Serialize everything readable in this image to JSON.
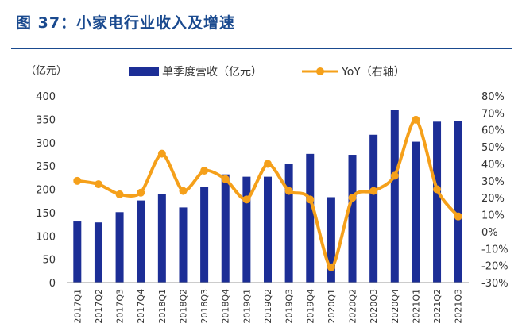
{
  "figure": {
    "title": "图 37：小家电行业收入及增速"
  },
  "chart_data": {
    "type": "bar+line",
    "y_left_unit": "（亿元）",
    "y_left_ticks": [
      "400",
      "350",
      "300",
      "250",
      "200",
      "150",
      "100",
      "50",
      "0"
    ],
    "y_right_ticks": [
      "80%",
      "70%",
      "60%",
      "50%",
      "40%",
      "30%",
      "20%",
      "10%",
      "0%",
      "-10%",
      "-20%",
      "-30%"
    ],
    "ylim_left": [
      0,
      400
    ],
    "ylim_right": [
      -30,
      80
    ],
    "legend": [
      "单季度营收（亿元）",
      "YoY（右轴）"
    ],
    "legend_position": "top",
    "colors": {
      "bar": "#1c2e96",
      "line": "#f5a01a"
    },
    "categories": [
      "2017Q1",
      "2017Q2",
      "2017Q3",
      "2017Q4",
      "2018Q1",
      "2018Q2",
      "2018Q3",
      "2018Q4",
      "2019Q1",
      "2019Q2",
      "2019Q3",
      "2019Q4",
      "2020Q1",
      "2020Q2",
      "2020Q3",
      "2020Q4",
      "2021Q1",
      "2021Q2",
      "2021Q3"
    ],
    "series": [
      {
        "name": "单季度营收（亿元）",
        "type": "bar",
        "axis": "left",
        "values": [
          131,
          129,
          151,
          176,
          190,
          161,
          205,
          232,
          227,
          227,
          254,
          276,
          183,
          274,
          317,
          370,
          302,
          345,
          346
        ]
      },
      {
        "name": "YoY（右轴）",
        "type": "line",
        "axis": "right",
        "values": [
          30,
          28,
          22,
          23,
          46,
          24,
          36,
          31,
          19,
          40,
          24,
          19,
          -21,
          20,
          24,
          33,
          66,
          25,
          9
        ]
      }
    ]
  }
}
